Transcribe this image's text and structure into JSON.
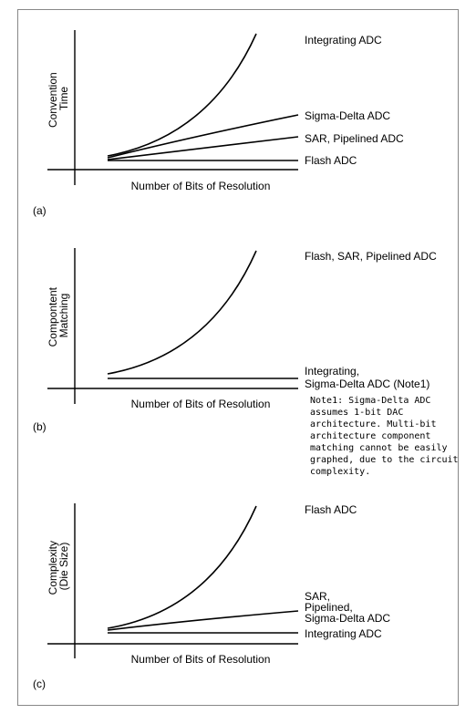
{
  "panels": [
    {
      "id": "a",
      "ylabel_lines": [
        "Convention",
        "Time"
      ],
      "xlabel": "Number of Bits of Resolution",
      "panel_tag": "(a)",
      "series": [
        {
          "label_lines": [
            "Integrating ADC"
          ]
        },
        {
          "label_lines": [
            "Sigma-Delta ADC"
          ]
        },
        {
          "label_lines": [
            "SAR, Pipelined ADC"
          ]
        },
        {
          "label_lines": [
            "Flash ADC"
          ]
        }
      ]
    },
    {
      "id": "b",
      "ylabel_lines": [
        "Compontent",
        "Matching"
      ],
      "xlabel": "Number of Bits of Resolution",
      "panel_tag": "(b)",
      "series": [
        {
          "label_lines": [
            "Flash, SAR, Pipelined ADC"
          ]
        },
        {
          "label_lines": [
            "Integrating,",
            "Sigma-Delta ADC (Note1)"
          ]
        }
      ],
      "note_lines": [
        "Note1: Sigma-Delta ADC",
        "assumes 1-bit DAC",
        "architecture. Multi-bit",
        "architecture component",
        "matching cannot be easily",
        "graphed, due to the circuit",
        "complexity."
      ]
    },
    {
      "id": "c",
      "ylabel_lines": [
        "Complexity",
        "(Die Size)"
      ],
      "xlabel": "Number of Bits of Resolution",
      "panel_tag": "(c)",
      "series": [
        {
          "label_lines": [
            "Flash ADC"
          ]
        },
        {
          "label_lines": [
            "SAR,",
            "Pipelined,",
            "Sigma-Delta ADC"
          ]
        },
        {
          "label_lines": [
            "Integrating ADC"
          ]
        }
      ]
    }
  ]
}
